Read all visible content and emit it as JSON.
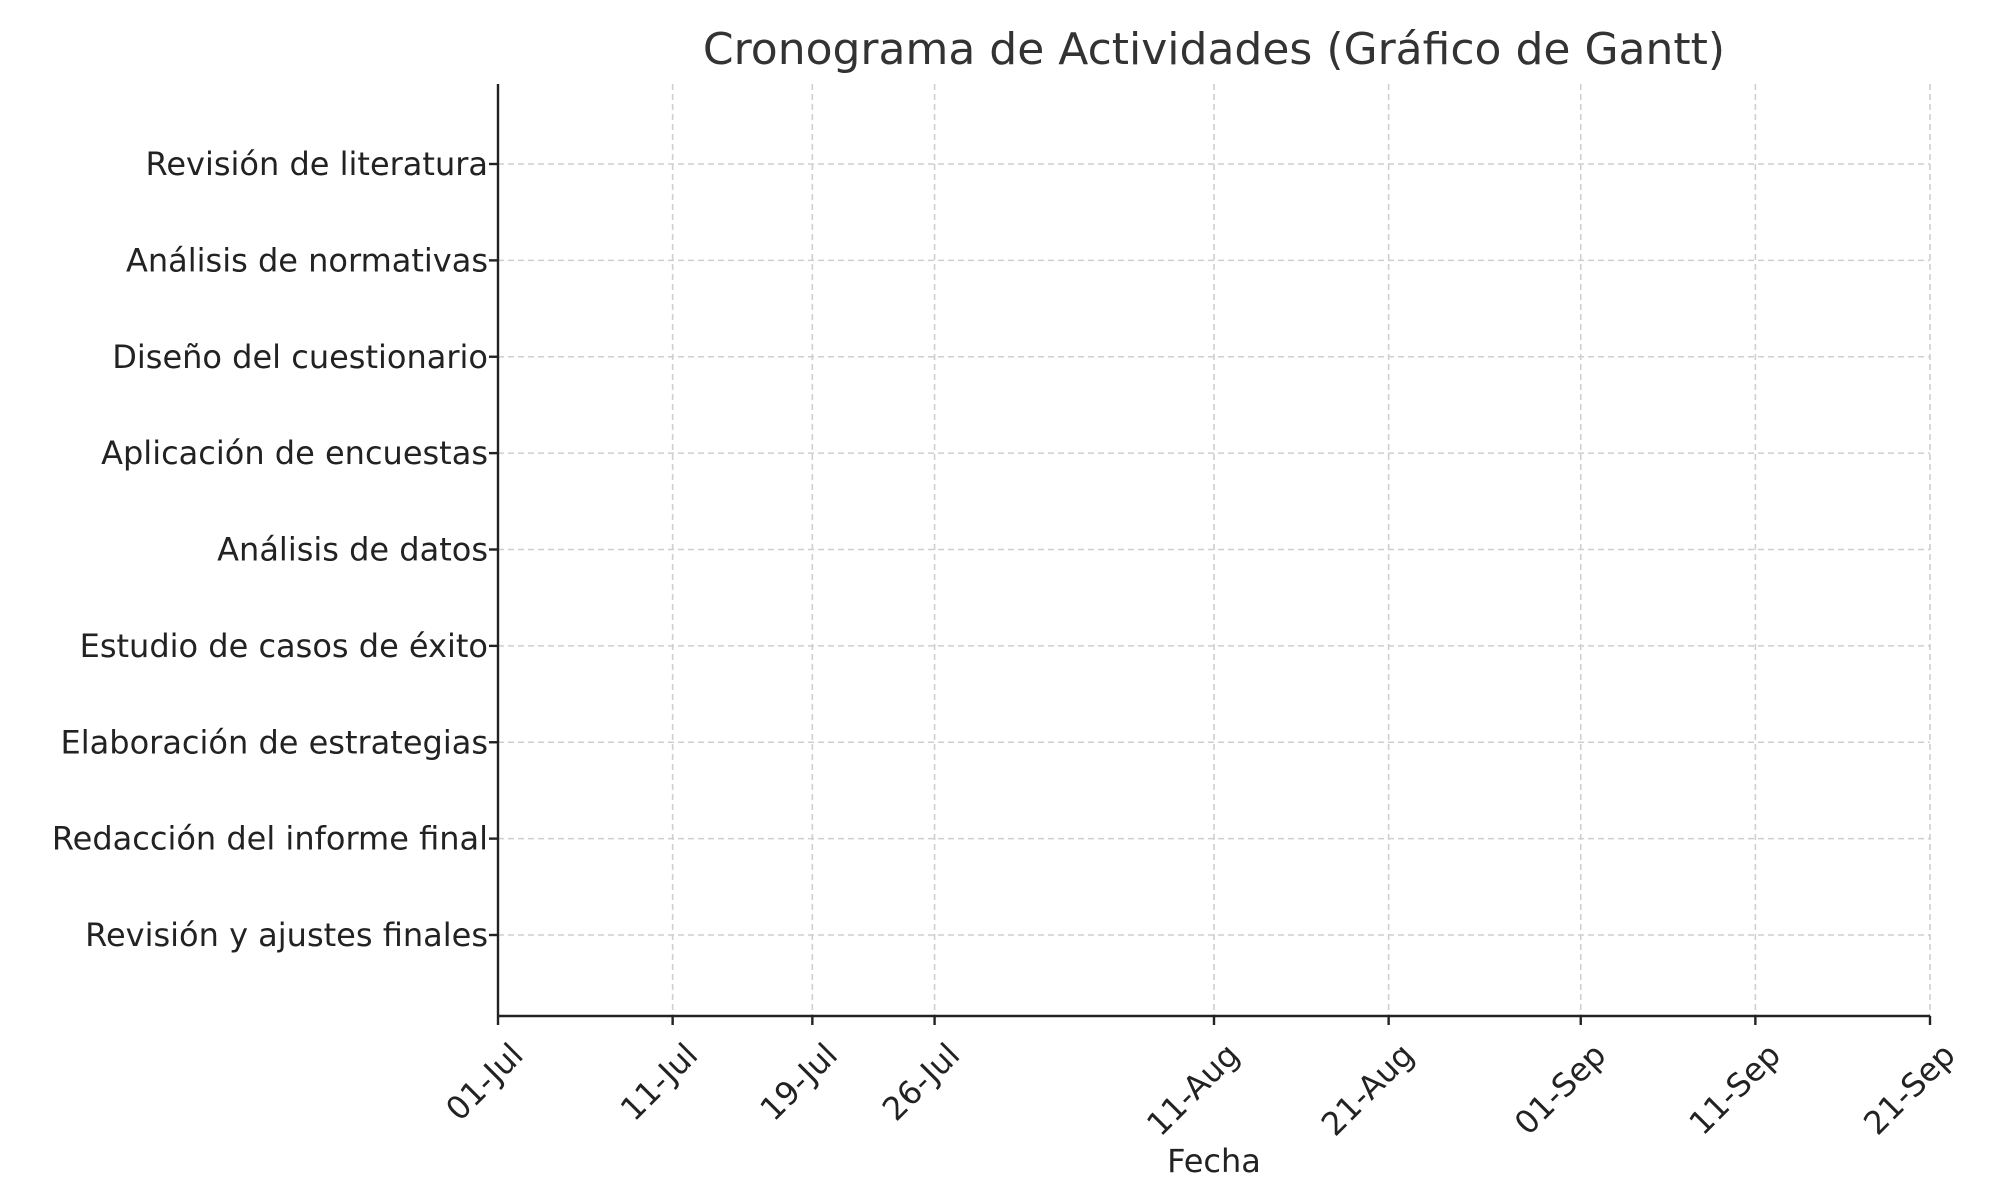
{
  "chart_data": {
    "type": "bar",
    "title": "Cronograma de Actividades (Gráfico de Gantt)",
    "xlabel": "Fecha",
    "ylabel": "",
    "xlim": [
      "2024-07-01",
      "2024-09-21"
    ],
    "grid": true,
    "legend": "none",
    "categories": [
      "Revisión de literatura",
      "Análisis de normativas",
      "Diseño del cuestionario",
      "Aplicación de encuestas",
      "Análisis de datos",
      "Estudio de casos de éxito",
      "Elaboración de estrategias",
      "Redacción del informe final",
      "Revisión y ajustes finales"
    ],
    "x_ticks": [
      {
        "date": "2024-07-01",
        "label": "01-Jul"
      },
      {
        "date": "2024-07-11",
        "label": "11-Jul"
      },
      {
        "date": "2024-07-19",
        "label": "19-Jul"
      },
      {
        "date": "2024-07-26",
        "label": "26-Jul"
      },
      {
        "date": "2024-08-11",
        "label": "11-Aug"
      },
      {
        "date": "2024-08-21",
        "label": "21-Aug"
      },
      {
        "date": "2024-09-01",
        "label": "01-Sep"
      },
      {
        "date": "2024-09-11",
        "label": "11-Sep"
      },
      {
        "date": "2024-09-21",
        "label": "21-Sep"
      }
    ],
    "series": []
  }
}
